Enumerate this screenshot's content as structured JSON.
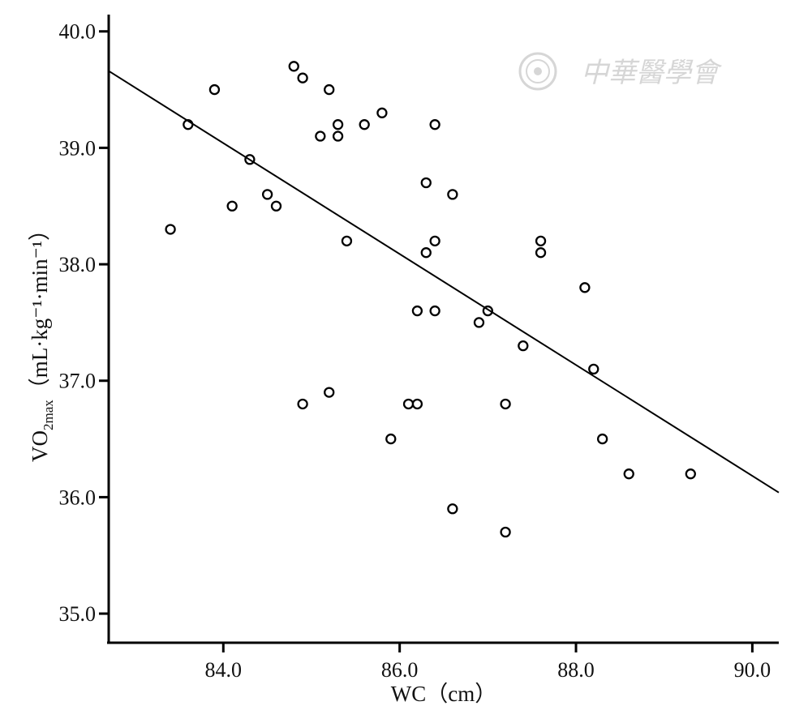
{
  "watermark": {
    "text": "中華醫學會"
  },
  "chart_data": {
    "type": "scatter",
    "title": "",
    "xlabel": "WC（cm）",
    "ylabel_main": "VO",
    "ylabel_sub": "2max",
    "ylabel_units": "（mL·kg⁻¹·min⁻¹）",
    "xlim": [
      82.7,
      90.3
    ],
    "ylim": [
      34.75,
      40.2
    ],
    "x_ticks": [
      84.0,
      86.0,
      88.0,
      90.0
    ],
    "y_ticks": [
      35.0,
      36.0,
      37.0,
      38.0,
      39.0,
      40.0
    ],
    "x_tick_labels": [
      "84.0",
      "86.0",
      "88.0",
      "90.0"
    ],
    "y_tick_labels": [
      "35.0",
      "36.0",
      "37.0",
      "38.0",
      "39.0",
      "40.0"
    ],
    "grid": false,
    "legend": "none",
    "marker_color": "#000000",
    "line_color": "#000000",
    "regression_line": {
      "x": [
        82.7,
        90.3
      ],
      "y": [
        39.66,
        36.04
      ]
    },
    "points": [
      {
        "x": 83.4,
        "y": 38.3
      },
      {
        "x": 83.6,
        "y": 39.2
      },
      {
        "x": 83.9,
        "y": 39.5
      },
      {
        "x": 84.1,
        "y": 38.5
      },
      {
        "x": 84.3,
        "y": 38.9
      },
      {
        "x": 84.5,
        "y": 38.6
      },
      {
        "x": 84.6,
        "y": 38.5
      },
      {
        "x": 84.8,
        "y": 39.7
      },
      {
        "x": 84.9,
        "y": 39.6
      },
      {
        "x": 84.9,
        "y": 36.8
      },
      {
        "x": 85.1,
        "y": 39.1
      },
      {
        "x": 85.2,
        "y": 39.5
      },
      {
        "x": 85.2,
        "y": 36.9
      },
      {
        "x": 85.3,
        "y": 39.2
      },
      {
        "x": 85.3,
        "y": 39.1
      },
      {
        "x": 85.4,
        "y": 38.2
      },
      {
        "x": 85.6,
        "y": 39.2
      },
      {
        "x": 85.8,
        "y": 39.3
      },
      {
        "x": 85.9,
        "y": 36.5
      },
      {
        "x": 86.1,
        "y": 36.8
      },
      {
        "x": 86.2,
        "y": 36.8
      },
      {
        "x": 86.2,
        "y": 37.6
      },
      {
        "x": 86.3,
        "y": 38.7
      },
      {
        "x": 86.3,
        "y": 38.1
      },
      {
        "x": 86.4,
        "y": 39.2
      },
      {
        "x": 86.4,
        "y": 38.2
      },
      {
        "x": 86.4,
        "y": 37.6
      },
      {
        "x": 86.6,
        "y": 38.6
      },
      {
        "x": 86.6,
        "y": 35.9
      },
      {
        "x": 86.9,
        "y": 37.5
      },
      {
        "x": 87.0,
        "y": 37.6
      },
      {
        "x": 87.2,
        "y": 36.8
      },
      {
        "x": 87.2,
        "y": 35.7
      },
      {
        "x": 87.4,
        "y": 37.3
      },
      {
        "x": 87.6,
        "y": 38.2
      },
      {
        "x": 87.6,
        "y": 38.1
      },
      {
        "x": 88.1,
        "y": 37.8
      },
      {
        "x": 88.2,
        "y": 37.1
      },
      {
        "x": 88.3,
        "y": 36.5
      },
      {
        "x": 88.6,
        "y": 36.2
      },
      {
        "x": 89.3,
        "y": 36.2
      }
    ]
  }
}
